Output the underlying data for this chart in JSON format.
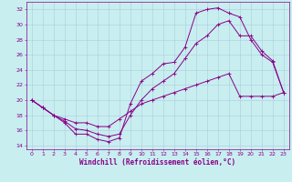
{
  "title": "",
  "xlabel": "Windchill (Refroidissement éolien,°C)",
  "ylabel": "",
  "xlim": [
    -0.5,
    23.5
  ],
  "ylim": [
    13.5,
    33.0
  ],
  "xticks": [
    0,
    1,
    2,
    3,
    4,
    5,
    6,
    7,
    8,
    9,
    10,
    11,
    12,
    13,
    14,
    15,
    16,
    17,
    18,
    19,
    20,
    21,
    22,
    23
  ],
  "yticks": [
    14,
    16,
    18,
    20,
    22,
    24,
    26,
    28,
    30,
    32
  ],
  "bg_color": "#c8eef0",
  "grid_color": "#aaccdd",
  "line_color": "#880088",
  "curve1_x": [
    0,
    1,
    2,
    3,
    4,
    5,
    6,
    7,
    8,
    9,
    10,
    11,
    12,
    13,
    14,
    15,
    16,
    17,
    18,
    19,
    20,
    21,
    22,
    23
  ],
  "curve1_y": [
    20.0,
    19.0,
    18.0,
    17.0,
    15.5,
    15.5,
    14.8,
    14.5,
    15.0,
    19.5,
    22.5,
    23.5,
    24.8,
    25.0,
    27.0,
    31.5,
    32.0,
    32.2,
    31.5,
    31.0,
    28.0,
    26.0,
    25.0,
    21.0
  ],
  "curve2_x": [
    0,
    1,
    2,
    3,
    4,
    5,
    6,
    7,
    8,
    9,
    10,
    11,
    12,
    13,
    14,
    15,
    16,
    17,
    18,
    19,
    20,
    21,
    22,
    23
  ],
  "curve2_y": [
    20.0,
    19.0,
    18.0,
    17.2,
    16.2,
    16.0,
    15.5,
    15.2,
    15.5,
    18.0,
    20.0,
    21.5,
    22.5,
    23.5,
    25.5,
    27.5,
    28.5,
    30.0,
    30.5,
    28.5,
    28.5,
    26.5,
    25.2,
    21.0
  ],
  "curve3_x": [
    0,
    1,
    2,
    3,
    4,
    5,
    6,
    7,
    8,
    9,
    10,
    11,
    12,
    13,
    14,
    15,
    16,
    17,
    18,
    19,
    20,
    21,
    22,
    23
  ],
  "curve3_y": [
    20.0,
    19.0,
    18.0,
    17.5,
    17.0,
    17.0,
    16.5,
    16.5,
    17.5,
    18.5,
    19.5,
    20.0,
    20.5,
    21.0,
    21.5,
    22.0,
    22.5,
    23.0,
    23.5,
    20.5,
    20.5,
    20.5,
    20.5,
    21.0
  ],
  "marker": "+",
  "marker_size": 2.5,
  "linewidth": 0.7,
  "tick_fontsize": 4.5,
  "xlabel_fontsize": 5.5
}
